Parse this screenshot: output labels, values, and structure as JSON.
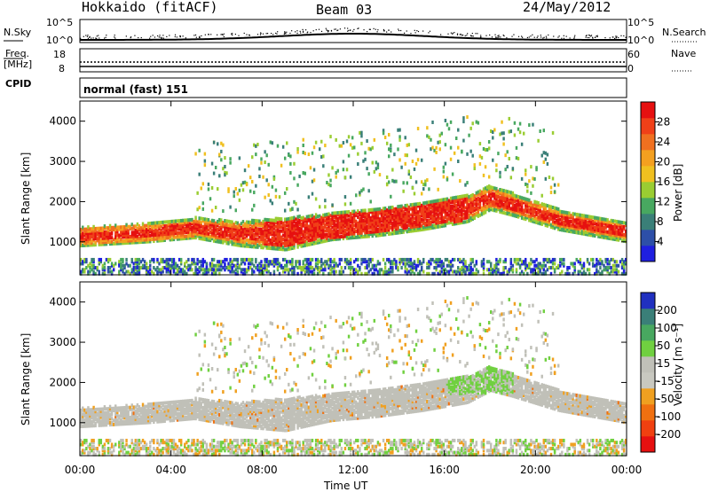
{
  "header": {
    "station": "Hokkaido (fitACF)",
    "beam": "Beam 03",
    "date": "24/May/2012"
  },
  "top_panels": {
    "nsky_label": "N.Sky",
    "nsky_ticks": [
      "10^5",
      "10^0"
    ],
    "nsearch_label": "N.Search",
    "nsearch_ticks": [
      "10^5",
      "10^0"
    ],
    "freq_label": "Freq.",
    "freq_unit": "[MHz]",
    "freq_ticks": [
      "18",
      "8"
    ],
    "nave_label": "Nave",
    "nave_ticks": [
      "60",
      "0"
    ],
    "cpid_label": "CPID",
    "cpid_value": "normal (fast) 151"
  },
  "chart_data": [
    {
      "type": "heatmap",
      "name": "power",
      "ylabel": "Slant Range [km]",
      "yticks": [
        "1000",
        "2000",
        "3000",
        "4000"
      ],
      "xticks": [
        "00:00",
        "04:00",
        "08:00",
        "12:00",
        "16:00",
        "20:00",
        "00:00"
      ],
      "xlim": [
        0,
        24
      ],
      "ylim": [
        180,
        4500
      ],
      "colorbar_label": "Power [dB]",
      "colorbar_ticks": [
        "4",
        "8",
        "12",
        "16",
        "20",
        "24",
        "28"
      ],
      "colorbar_colors": [
        "#1f1fe0",
        "#2d4fa8",
        "#3a7f78",
        "#48a860",
        "#9acd32",
        "#f0c020",
        "#f4a020",
        "#f07020",
        "#f04018",
        "#e61010"
      ],
      "scatter_band": [
        {
          "t": 0,
          "lo": 900,
          "hi": 1350
        },
        {
          "t": 1.5,
          "lo": 950,
          "hi": 1400
        },
        {
          "t": 3,
          "lo": 1000,
          "hi": 1450
        },
        {
          "t": 5,
          "lo": 1100,
          "hi": 1600
        },
        {
          "t": 7,
          "lo": 900,
          "hi": 1500
        },
        {
          "t": 9,
          "lo": 800,
          "hi": 1600
        },
        {
          "t": 11,
          "lo": 1050,
          "hi": 1700
        },
        {
          "t": 13,
          "lo": 1150,
          "hi": 1850
        },
        {
          "t": 15,
          "lo": 1300,
          "hi": 2000
        },
        {
          "t": 17,
          "lo": 1500,
          "hi": 2150
        },
        {
          "t": 18,
          "lo": 1800,
          "hi": 2400
        },
        {
          "t": 19,
          "lo": 1650,
          "hi": 2200
        },
        {
          "t": 21,
          "lo": 1300,
          "hi": 1800
        },
        {
          "t": 23,
          "lo": 1100,
          "hi": 1600
        },
        {
          "t": 24,
          "lo": 1000,
          "hi": 1500
        }
      ]
    },
    {
      "type": "heatmap",
      "name": "velocity",
      "ylabel": "Slant Range [km]",
      "yticks": [
        "1000",
        "2000",
        "3000",
        "4000"
      ],
      "xticks": [
        "00:00",
        "04:00",
        "08:00",
        "12:00",
        "16:00",
        "20:00",
        "00:00"
      ],
      "xlim": [
        0,
        24
      ],
      "ylim": [
        180,
        4500
      ],
      "xlabel": "Time UT",
      "colorbar_label": "Velocity [m s⁻¹]",
      "colorbar_ticks": [
        "200",
        "100",
        "50",
        "15",
        "-15",
        "-50",
        "-100",
        "-200"
      ],
      "colorbar_colors": [
        "#2030c0",
        "#3a7f78",
        "#48a860",
        "#70d040",
        "#c0c0b8",
        "#c8c8c0",
        "#f0a020",
        "#f07010",
        "#f04010",
        "#e61010"
      ]
    }
  ]
}
